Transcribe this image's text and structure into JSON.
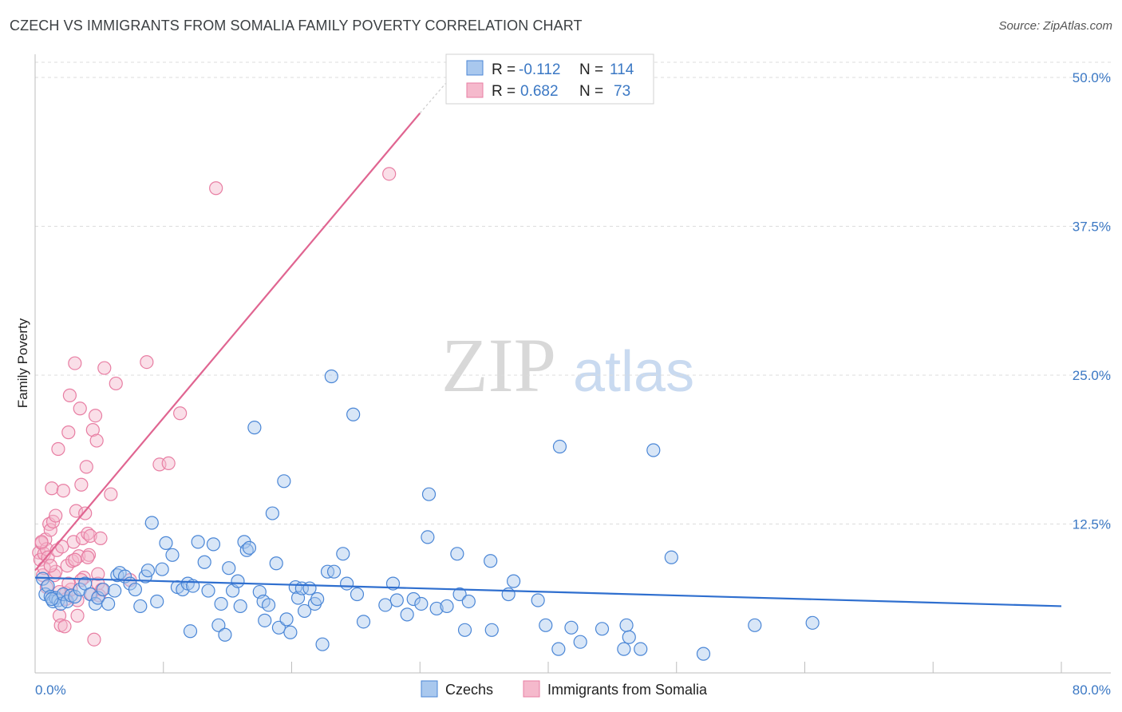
{
  "title": "CZECH VS IMMIGRANTS FROM SOMALIA FAMILY POVERTY CORRELATION CHART",
  "source": "Source: ZipAtlas.com",
  "watermark": {
    "zip": "ZIP",
    "atlas": "atlas"
  },
  "colors": {
    "blue_fill": "#a9c8ee",
    "blue_stroke": "#4a86d6",
    "blue_line": "#2f6fcf",
    "pink_fill": "#f5b9cc",
    "pink_stroke": "#e87ea3",
    "pink_line": "#e06591",
    "tick_text": "#3b78c4",
    "grid": "#dcdcdc"
  },
  "legend": {
    "r_label": "R =",
    "n_label": "N =",
    "rows": [
      {
        "r": "-0.112",
        "n": "114",
        "color": "blue"
      },
      {
        "r": "0.682",
        "n": "73",
        "color": "pink"
      }
    ]
  },
  "bottom_legend": [
    {
      "label": "Czechs",
      "color": "blue"
    },
    {
      "label": "Immigrants from Somalia",
      "color": "pink"
    }
  ],
  "chart_data": {
    "type": "scatter",
    "xlabel": "",
    "ylabel": "Family Poverty",
    "xlim": [
      0,
      80
    ],
    "ylim": [
      0,
      50
    ],
    "x_tick_labels": [
      {
        "value": 0,
        "label": "0.0%"
      },
      {
        "value": 80,
        "label": "80.0%"
      }
    ],
    "y_tick_labels": [
      {
        "value": 12.5,
        "label": "12.5%"
      },
      {
        "value": 25.0,
        "label": "25.0%"
      },
      {
        "value": 37.5,
        "label": "37.5%"
      },
      {
        "value": 50.0,
        "label": "50.0%"
      }
    ],
    "series": [
      {
        "name": "Czechs",
        "color": "blue",
        "trend": {
          "x1": 0,
          "y1": 8.0,
          "x2": 80,
          "y2": 5.6
        },
        "points": [
          [
            0.6,
            7.9
          ],
          [
            0.8,
            6.6
          ],
          [
            1.0,
            7.3
          ],
          [
            1.2,
            6.4
          ],
          [
            1.4,
            6.0
          ],
          [
            1.6,
            6.3
          ],
          [
            1.8,
            6.1
          ],
          [
            2.0,
            5.8
          ],
          [
            2.2,
            6.6
          ],
          [
            2.5,
            6.0
          ],
          [
            2.8,
            6.5
          ],
          [
            3.1,
            6.4
          ],
          [
            3.5,
            7.0
          ],
          [
            3.9,
            7.5
          ],
          [
            4.3,
            6.6
          ],
          [
            4.7,
            5.8
          ],
          [
            4.9,
            6.3
          ],
          [
            5.3,
            7.0
          ],
          [
            5.7,
            5.8
          ],
          [
            6.2,
            6.9
          ],
          [
            6.4,
            8.2
          ],
          [
            6.6,
            8.4
          ],
          [
            7.0,
            8.1
          ],
          [
            7.4,
            7.5
          ],
          [
            7.8,
            7.0
          ],
          [
            8.2,
            5.6
          ],
          [
            8.6,
            8.1
          ],
          [
            8.8,
            8.6
          ],
          [
            9.1,
            12.6
          ],
          [
            9.5,
            6.0
          ],
          [
            9.9,
            8.7
          ],
          [
            10.2,
            10.9
          ],
          [
            10.7,
            9.9
          ],
          [
            11.1,
            7.2
          ],
          [
            11.5,
            7.0
          ],
          [
            11.9,
            7.5
          ],
          [
            12.3,
            7.3
          ],
          [
            12.1,
            3.5
          ],
          [
            12.7,
            11.0
          ],
          [
            13.2,
            9.3
          ],
          [
            13.5,
            6.9
          ],
          [
            13.9,
            10.8
          ],
          [
            14.3,
            4.0
          ],
          [
            14.5,
            5.8
          ],
          [
            14.8,
            3.2
          ],
          [
            15.1,
            8.8
          ],
          [
            15.4,
            6.9
          ],
          [
            15.8,
            7.7
          ],
          [
            16.0,
            5.6
          ],
          [
            16.3,
            11.0
          ],
          [
            16.5,
            10.3
          ],
          [
            16.7,
            10.5
          ],
          [
            17.1,
            20.6
          ],
          [
            17.5,
            6.8
          ],
          [
            17.8,
            6.0
          ],
          [
            17.9,
            4.4
          ],
          [
            18.2,
            5.7
          ],
          [
            18.5,
            13.4
          ],
          [
            18.8,
            9.2
          ],
          [
            19.0,
            3.8
          ],
          [
            19.4,
            16.1
          ],
          [
            19.6,
            4.5
          ],
          [
            19.9,
            3.4
          ],
          [
            20.3,
            7.2
          ],
          [
            20.5,
            6.3
          ],
          [
            20.8,
            7.1
          ],
          [
            21.0,
            5.2
          ],
          [
            21.4,
            7.1
          ],
          [
            21.8,
            5.8
          ],
          [
            22.0,
            6.2
          ],
          [
            22.4,
            2.4
          ],
          [
            22.8,
            8.5
          ],
          [
            23.1,
            24.9
          ],
          [
            23.3,
            8.5
          ],
          [
            24.0,
            10.0
          ],
          [
            24.3,
            7.5
          ],
          [
            24.8,
            21.7
          ],
          [
            25.1,
            6.6
          ],
          [
            25.6,
            4.3
          ],
          [
            27.3,
            5.7
          ],
          [
            27.9,
            7.5
          ],
          [
            28.2,
            6.1
          ],
          [
            29.0,
            4.9
          ],
          [
            29.5,
            6.2
          ],
          [
            30.1,
            5.8
          ],
          [
            30.6,
            11.4
          ],
          [
            30.7,
            15.0
          ],
          [
            31.3,
            5.4
          ],
          [
            32.1,
            5.6
          ],
          [
            32.9,
            10.0
          ],
          [
            33.1,
            6.6
          ],
          [
            33.5,
            3.6
          ],
          [
            33.8,
            6.0
          ],
          [
            35.5,
            9.4
          ],
          [
            35.6,
            3.6
          ],
          [
            36.9,
            6.6
          ],
          [
            37.3,
            7.7
          ],
          [
            39.2,
            6.1
          ],
          [
            39.8,
            4.0
          ],
          [
            40.8,
            2.0
          ],
          [
            40.9,
            19.0
          ],
          [
            41.8,
            3.8
          ],
          [
            42.5,
            2.6
          ],
          [
            44.2,
            3.7
          ],
          [
            45.9,
            2.0
          ],
          [
            46.1,
            4.0
          ],
          [
            46.3,
            3.0
          ],
          [
            47.2,
            2.0
          ],
          [
            48.2,
            18.7
          ],
          [
            49.6,
            9.7
          ],
          [
            52.1,
            1.6
          ],
          [
            56.1,
            4.0
          ],
          [
            60.6,
            4.2
          ],
          [
            1.3,
            6.2
          ]
        ]
      },
      {
        "name": "Immigrants from Somalia",
        "color": "pink",
        "trend": {
          "x1": 0,
          "y1": 8.6,
          "x2": 30.0,
          "y2": 47.0,
          "dash_x2": 32.0,
          "dash_y2": 49.5
        },
        "points": [
          [
            0.3,
            10.1
          ],
          [
            0.4,
            9.5
          ],
          [
            0.5,
            10.9
          ],
          [
            0.6,
            8.2
          ],
          [
            0.7,
            10.0
          ],
          [
            0.8,
            11.2
          ],
          [
            0.9,
            10.4
          ],
          [
            1.0,
            9.7
          ],
          [
            1.1,
            12.5
          ],
          [
            1.2,
            12.0
          ],
          [
            1.3,
            15.5
          ],
          [
            1.4,
            12.7
          ],
          [
            1.5,
            8.2
          ],
          [
            1.6,
            13.2
          ],
          [
            1.7,
            10.3
          ],
          [
            1.8,
            18.8
          ],
          [
            1.9,
            4.8
          ],
          [
            2.0,
            4.0
          ],
          [
            2.2,
            15.3
          ],
          [
            2.3,
            3.9
          ],
          [
            2.4,
            6.7
          ],
          [
            2.5,
            9.0
          ],
          [
            2.6,
            20.2
          ],
          [
            2.7,
            23.3
          ],
          [
            2.8,
            7.0
          ],
          [
            2.9,
            9.4
          ],
          [
            3.0,
            11.0
          ],
          [
            3.1,
            26.0
          ],
          [
            3.2,
            13.6
          ],
          [
            3.3,
            4.8
          ],
          [
            3.4,
            9.8
          ],
          [
            3.5,
            22.2
          ],
          [
            3.6,
            15.8
          ],
          [
            3.7,
            11.3
          ],
          [
            3.8,
            8.0
          ],
          [
            3.9,
            13.4
          ],
          [
            4.0,
            17.3
          ],
          [
            4.1,
            11.7
          ],
          [
            4.2,
            9.9
          ],
          [
            4.3,
            11.5
          ],
          [
            4.4,
            6.6
          ],
          [
            4.5,
            20.4
          ],
          [
            4.6,
            2.8
          ],
          [
            4.7,
            21.6
          ],
          [
            4.8,
            19.5
          ],
          [
            4.9,
            7.5
          ],
          [
            5.0,
            6.5
          ],
          [
            5.1,
            11.3
          ],
          [
            5.2,
            7.0
          ],
          [
            5.4,
            25.6
          ],
          [
            5.9,
            15.0
          ],
          [
            6.3,
            24.3
          ],
          [
            7.4,
            7.8
          ],
          [
            8.7,
            26.1
          ],
          [
            9.7,
            17.5
          ],
          [
            10.4,
            17.6
          ],
          [
            11.3,
            21.8
          ],
          [
            14.1,
            40.7
          ],
          [
            27.6,
            41.9
          ],
          [
            0.5,
            11.0
          ],
          [
            0.9,
            7.2
          ],
          [
            1.6,
            8.5
          ],
          [
            2.1,
            10.6
          ],
          [
            2.6,
            7.5
          ],
          [
            3.1,
            9.5
          ],
          [
            3.6,
            7.8
          ],
          [
            4.1,
            9.7
          ],
          [
            0.7,
            8.8
          ],
          [
            1.2,
            9.0
          ],
          [
            2.4,
            6.2
          ],
          [
            1.9,
            6.8
          ],
          [
            3.3,
            6.1
          ],
          [
            4.9,
            8.3
          ]
        ]
      }
    ]
  }
}
